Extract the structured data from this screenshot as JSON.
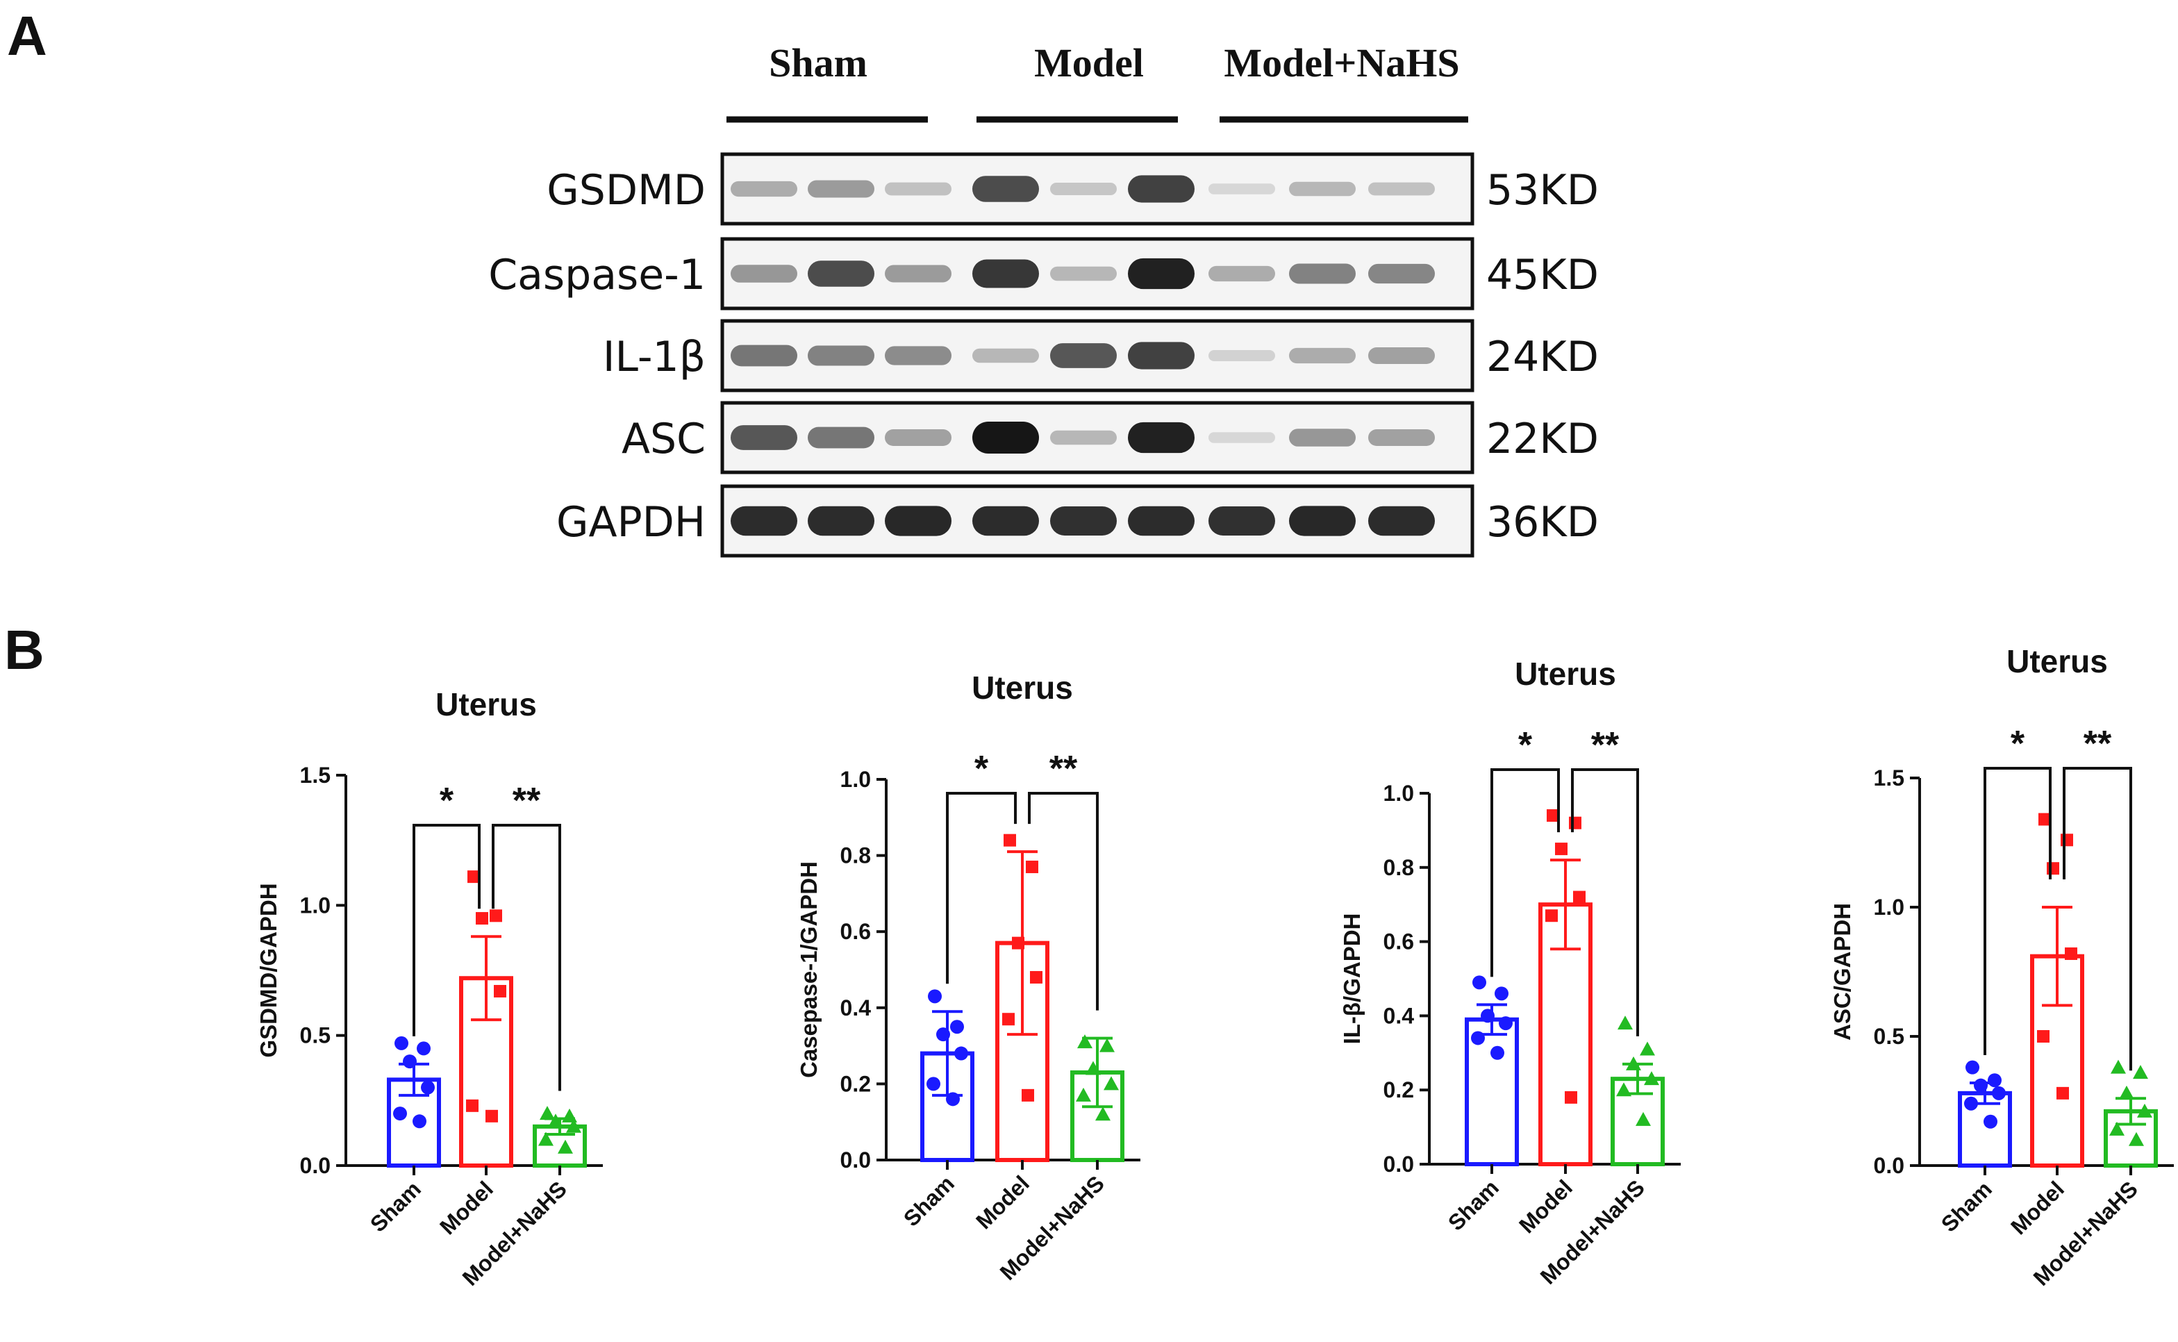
{
  "panel_a": {
    "letter": "A",
    "groups": [
      "Sham",
      "Model",
      "Model+NaHS"
    ],
    "proteins": [
      "GSDMD",
      "Caspase-1",
      "IL-1β",
      "ASC",
      "GAPDH"
    ],
    "sizes": [
      "53KD",
      "45KD",
      "24KD",
      "22KD",
      "36KD"
    ],
    "band_intensity": [
      [
        0.3,
        0.38,
        0.2,
        0.75,
        0.18,
        0.8,
        0.1,
        0.25,
        0.2
      ],
      [
        0.4,
        0.75,
        0.38,
        0.85,
        0.25,
        0.95,
        0.3,
        0.5,
        0.48
      ],
      [
        0.55,
        0.5,
        0.45,
        0.25,
        0.7,
        0.8,
        0.12,
        0.3,
        0.35
      ],
      [
        0.7,
        0.55,
        0.35,
        1.0,
        0.25,
        0.95,
        0.1,
        0.4,
        0.35
      ],
      [
        0.9,
        0.9,
        0.92,
        0.9,
        0.88,
        0.9,
        0.88,
        0.92,
        0.9
      ]
    ]
  },
  "panel_b": {
    "letter": "B"
  },
  "chart_data": [
    {
      "type": "bar",
      "title": "Uterus",
      "ylabel": "GSDMD/GAPDH",
      "categories": [
        "Sham",
        "Model",
        "Model+NaHS"
      ],
      "values": [
        0.33,
        0.72,
        0.15
      ],
      "sem": [
        0.06,
        0.16,
        0.03
      ],
      "points": [
        [
          0.47,
          0.45,
          0.4,
          0.3,
          0.2,
          0.17
        ],
        [
          1.11,
          0.96,
          0.95,
          0.67,
          0.23,
          0.19
        ],
        [
          0.2,
          0.19,
          0.17,
          0.15,
          0.1,
          0.07
        ]
      ],
      "ylim": [
        0,
        1.5
      ],
      "yticks": [
        "0.0",
        "0.5",
        "1.0",
        "1.5"
      ],
      "colors": [
        "#1a1aff",
        "#ff1a1a",
        "#22bb22"
      ],
      "markers": [
        "circle",
        "square",
        "triangle"
      ],
      "significance": [
        {
          "from": 0,
          "to": 1,
          "label": "*"
        },
        {
          "from": 1,
          "to": 2,
          "label": "**"
        }
      ]
    },
    {
      "type": "bar",
      "title": "Uterus",
      "ylabel": "Casepase-1/GAPDH",
      "categories": [
        "Sham",
        "Model",
        "Model+NaHS"
      ],
      "values": [
        0.28,
        0.57,
        0.23
      ],
      "sem": [
        0.11,
        0.24,
        0.09
      ],
      "points": [
        [
          0.43,
          0.35,
          0.33,
          0.28,
          0.2,
          0.16
        ],
        [
          0.84,
          0.77,
          0.57,
          0.48,
          0.37,
          0.17
        ],
        [
          0.31,
          0.3,
          0.24,
          0.2,
          0.17,
          0.12
        ]
      ],
      "ylim": [
        0,
        1.0
      ],
      "yticks": [
        "0.0",
        "0.2",
        "0.4",
        "0.6",
        "0.8",
        "1.0"
      ],
      "colors": [
        "#1a1aff",
        "#ff1a1a",
        "#22bb22"
      ],
      "markers": [
        "circle",
        "square",
        "triangle"
      ],
      "significance": [
        {
          "from": 0,
          "to": 1,
          "label": "*"
        },
        {
          "from": 1,
          "to": 2,
          "label": "**"
        }
      ]
    },
    {
      "type": "bar",
      "title": "Uterus",
      "ylabel": "IL-β/GAPDH",
      "categories": [
        "Sham",
        "Model",
        "Model+NaHS"
      ],
      "values": [
        0.39,
        0.7,
        0.23
      ],
      "sem": [
        0.04,
        0.12,
        0.04
      ],
      "points": [
        [
          0.49,
          0.46,
          0.4,
          0.38,
          0.34,
          0.3
        ],
        [
          0.94,
          0.92,
          0.85,
          0.72,
          0.67,
          0.18
        ],
        [
          0.38,
          0.31,
          0.27,
          0.23,
          0.2,
          0.12
        ]
      ],
      "ylim": [
        0,
        1.0
      ],
      "yticks": [
        "0.0",
        "0.2",
        "0.4",
        "0.6",
        "0.8",
        "1.0"
      ],
      "colors": [
        "#1a1aff",
        "#ff1a1a",
        "#22bb22"
      ],
      "markers": [
        "circle",
        "square",
        "triangle"
      ],
      "significance": [
        {
          "from": 0,
          "to": 1,
          "label": "*"
        },
        {
          "from": 1,
          "to": 2,
          "label": "**"
        }
      ]
    },
    {
      "type": "bar",
      "title": "Uterus",
      "ylabel": "ASC/GAPDH",
      "categories": [
        "Sham",
        "Model",
        "Model+NaHS"
      ],
      "values": [
        0.28,
        0.81,
        0.21
      ],
      "sem": [
        0.04,
        0.19,
        0.05
      ],
      "points": [
        [
          0.38,
          0.33,
          0.31,
          0.28,
          0.24,
          0.17
        ],
        [
          1.34,
          1.26,
          1.15,
          0.82,
          0.5,
          0.28
        ],
        [
          0.38,
          0.36,
          0.28,
          0.21,
          0.14,
          0.1
        ]
      ],
      "ylim": [
        0,
        1.5
      ],
      "yticks": [
        "0.0",
        "0.5",
        "1.0",
        "1.5"
      ],
      "colors": [
        "#1a1aff",
        "#ff1a1a",
        "#22bb22"
      ],
      "markers": [
        "circle",
        "square",
        "triangle"
      ],
      "significance": [
        {
          "from": 0,
          "to": 1,
          "label": "*"
        },
        {
          "from": 1,
          "to": 2,
          "label": "**"
        }
      ]
    }
  ]
}
